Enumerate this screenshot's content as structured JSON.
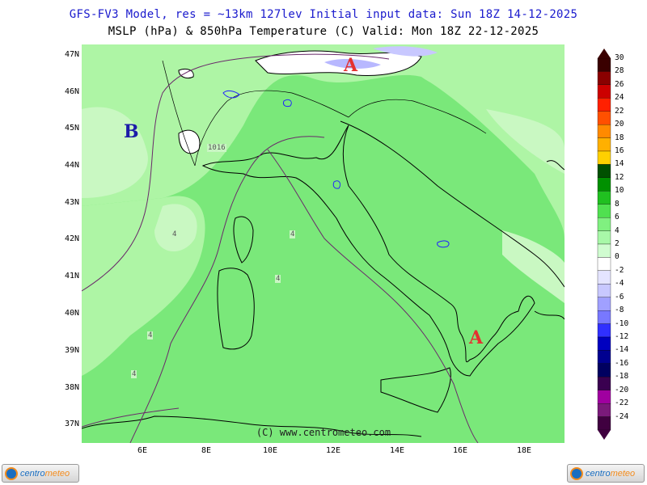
{
  "header": {
    "line1": "GFS-FV3 Model, res = ~13km 127lev   Initial input data: Sun 18Z 14-12-2025",
    "line2": "MSLP (hPa) & 850hPa Temperature (C)  Valid: Mon 18Z 22-12-2025"
  },
  "map": {
    "lat_labels": [
      "47N",
      "46N",
      "45N",
      "44N",
      "43N",
      "42N",
      "41N",
      "40N",
      "39N",
      "38N",
      "37N"
    ],
    "lon_labels": [
      "6E",
      "8E",
      "10E",
      "12E",
      "14E",
      "16E",
      "18E"
    ],
    "isobar_label": "1016",
    "temperature_labels": [
      "4",
      "4",
      "4",
      "4",
      "4"
    ],
    "pressure_centers": [
      {
        "letter": "A",
        "type": "high",
        "color": "#e53030"
      },
      {
        "letter": "B",
        "type": "low",
        "color": "#1c1ca8"
      },
      {
        "letter": "A",
        "type": "high",
        "color": "#e53030"
      }
    ],
    "copyright": "(C) www.centrometeo.com",
    "colors": {
      "sea_base": "#7ae87a",
      "land_light": "#aef5a5",
      "land_pale": "#c9f8c2",
      "cold_blue": "#5050ff"
    }
  },
  "colorbar": {
    "values": [
      "30",
      "28",
      "26",
      "24",
      "22",
      "20",
      "18",
      "16",
      "14",
      "12",
      "10",
      "8",
      "6",
      "4",
      "2",
      "0",
      "-2",
      "-4",
      "-6",
      "-8",
      "-10",
      "-12",
      "-14",
      "-16",
      "-18",
      "-20",
      "-22",
      "-24"
    ],
    "colors": [
      "#3a0000",
      "#8a0000",
      "#cc0000",
      "#ff2000",
      "#ff5000",
      "#ff8a00",
      "#ffb000",
      "#ffd000",
      "#005000",
      "#009000",
      "#20c020",
      "#50e050",
      "#80f080",
      "#a8f8a8",
      "#d0fcd0",
      "#ffffff",
      "#e4e4ff",
      "#c8c8ff",
      "#a0a0ff",
      "#7878ff",
      "#3030ff",
      "#0000c0",
      "#000090",
      "#000060",
      "#3a0050",
      "#a000a0",
      "#7a1a7a",
      "#400040"
    ]
  },
  "footer": {
    "logo_left": {
      "brand_a": "centro",
      "brand_b": "meteo"
    },
    "logo_right": {
      "brand_a": "centro",
      "brand_b": "meteo"
    }
  }
}
